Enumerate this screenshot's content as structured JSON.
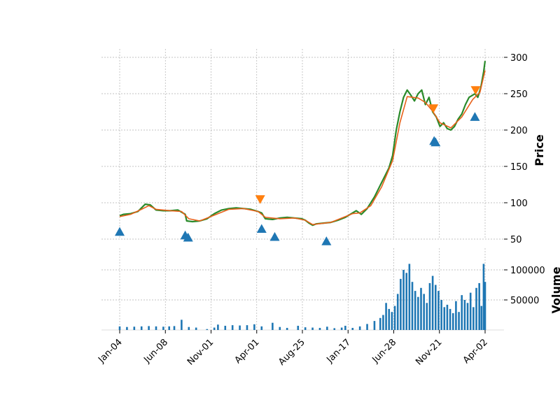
{
  "chart_data": {
    "type": "line",
    "subtype": "candlestick-with-volume",
    "x_tick_labels": [
      "Jan-04",
      "Jun-08",
      "Nov-01",
      "Apr-01",
      "Aug-25",
      "Jan-17",
      "Jun-28",
      "Nov-21",
      "Apr-02"
    ],
    "price_panel": {
      "ylabel": "Price",
      "ylim": [
        40,
        310
      ],
      "yticks": [
        50,
        100,
        150,
        200,
        250,
        300
      ],
      "close": [
        [
          0,
          82
        ],
        [
          5,
          84
        ],
        [
          15,
          85
        ],
        [
          25,
          88
        ],
        [
          30,
          93
        ],
        [
          35,
          98
        ],
        [
          42,
          97
        ],
        [
          50,
          90
        ],
        [
          60,
          89
        ],
        [
          70,
          89
        ],
        [
          80,
          90
        ],
        [
          90,
          84
        ],
        [
          92,
          75
        ],
        [
          100,
          74
        ],
        [
          110,
          75
        ],
        [
          120,
          78
        ],
        [
          130,
          85
        ],
        [
          140,
          90
        ],
        [
          150,
          92
        ],
        [
          160,
          93
        ],
        [
          170,
          92
        ],
        [
          180,
          91
        ],
        [
          190,
          88
        ],
        [
          195,
          86
        ],
        [
          200,
          78
        ],
        [
          210,
          77
        ],
        [
          220,
          79
        ],
        [
          230,
          80
        ],
        [
          240,
          79
        ],
        [
          250,
          78
        ],
        [
          255,
          76
        ],
        [
          260,
          72
        ],
        [
          265,
          69
        ],
        [
          270,
          71
        ],
        [
          280,
          72
        ],
        [
          290,
          73
        ],
        [
          300,
          76
        ],
        [
          310,
          80
        ],
        [
          320,
          86
        ],
        [
          325,
          89
        ],
        [
          332,
          84
        ],
        [
          340,
          92
        ],
        [
          350,
          108
        ],
        [
          360,
          128
        ],
        [
          370,
          148
        ],
        [
          375,
          165
        ],
        [
          380,
          200
        ],
        [
          385,
          225
        ],
        [
          390,
          245
        ],
        [
          395,
          255
        ],
        [
          400,
          248
        ],
        [
          405,
          240
        ],
        [
          410,
          250
        ],
        [
          415,
          255
        ],
        [
          420,
          235
        ],
        [
          425,
          245
        ],
        [
          430,
          225
        ],
        [
          435,
          218
        ],
        [
          440,
          205
        ],
        [
          445,
          210
        ],
        [
          450,
          202
        ],
        [
          455,
          200
        ],
        [
          460,
          205
        ],
        [
          465,
          215
        ],
        [
          470,
          222
        ],
        [
          475,
          235
        ],
        [
          480,
          245
        ],
        [
          485,
          248
        ],
        [
          488,
          250
        ],
        [
          492,
          245
        ],
        [
          496,
          258
        ],
        [
          500,
          280
        ],
        [
          502,
          295
        ]
      ],
      "ema": [
        [
          0,
          81
        ],
        [
          15,
          84
        ],
        [
          30,
          91
        ],
        [
          40,
          96
        ],
        [
          50,
          91
        ],
        [
          70,
          89
        ],
        [
          85,
          88
        ],
        [
          95,
          78
        ],
        [
          110,
          75
        ],
        [
          130,
          83
        ],
        [
          150,
          91
        ],
        [
          170,
          92
        ],
        [
          190,
          88
        ],
        [
          200,
          80
        ],
        [
          220,
          78
        ],
        [
          240,
          79
        ],
        [
          255,
          76
        ],
        [
          265,
          70
        ],
        [
          290,
          73
        ],
        [
          320,
          85
        ],
        [
          330,
          86
        ],
        [
          345,
          96
        ],
        [
          360,
          122
        ],
        [
          375,
          158
        ],
        [
          385,
          210
        ],
        [
          395,
          246
        ],
        [
          410,
          244
        ],
        [
          420,
          238
        ],
        [
          430,
          226
        ],
        [
          440,
          210
        ],
        [
          455,
          203
        ],
        [
          470,
          218
        ],
        [
          485,
          242
        ],
        [
          495,
          252
        ],
        [
          502,
          282
        ]
      ],
      "buy_markers": [
        [
          0,
          60
        ],
        [
          90,
          55
        ],
        [
          94,
          52
        ],
        [
          195,
          64
        ],
        [
          213,
          53
        ],
        [
          284,
          47
        ],
        [
          432,
          185
        ],
        [
          434,
          183
        ],
        [
          488,
          218
        ]
      ],
      "sell_markers": [
        [
          193,
          105
        ],
        [
          431,
          230
        ],
        [
          489,
          255
        ]
      ],
      "colors": {
        "close": "#2a8a2a",
        "ema": "#e8611a",
        "buy": "#1f77b4",
        "sell": "#ff7f0e"
      }
    },
    "volume_panel": {
      "ylabel": "Volume",
      "ylim": [
        0,
        125000
      ],
      "yticks": [
        50000,
        100000
      ],
      "bars": [
        [
          0,
          6000
        ],
        [
          10,
          5000
        ],
        [
          20,
          5500
        ],
        [
          30,
          6000
        ],
        [
          40,
          6500
        ],
        [
          50,
          6000
        ],
        [
          60,
          5500
        ],
        [
          68,
          6000
        ],
        [
          75,
          6500
        ],
        [
          85,
          17000
        ],
        [
          95,
          5000
        ],
        [
          105,
          4000
        ],
        [
          120,
          1500
        ],
        [
          130,
          4000
        ],
        [
          135,
          9000
        ],
        [
          145,
          7000
        ],
        [
          155,
          8000
        ],
        [
          165,
          7500
        ],
        [
          175,
          8000
        ],
        [
          185,
          9500
        ],
        [
          195,
          6000
        ],
        [
          210,
          12000
        ],
        [
          220,
          5000
        ],
        [
          230,
          3500
        ],
        [
          245,
          7000
        ],
        [
          255,
          4500
        ],
        [
          265,
          4000
        ],
        [
          275,
          3500
        ],
        [
          285,
          5500
        ],
        [
          295,
          3000
        ],
        [
          305,
          4000
        ],
        [
          310,
          7000
        ],
        [
          320,
          3500
        ],
        [
          330,
          6000
        ],
        [
          340,
          10000
        ],
        [
          350,
          15000
        ],
        [
          358,
          20000
        ],
        [
          362,
          25000
        ],
        [
          366,
          45000
        ],
        [
          370,
          35000
        ],
        [
          374,
          30000
        ],
        [
          378,
          40000
        ],
        [
          382,
          60000
        ],
        [
          386,
          85000
        ],
        [
          390,
          100000
        ],
        [
          394,
          95000
        ],
        [
          398,
          110000
        ],
        [
          402,
          80000
        ],
        [
          406,
          65000
        ],
        [
          410,
          55000
        ],
        [
          414,
          70000
        ],
        [
          418,
          60000
        ],
        [
          422,
          45000
        ],
        [
          426,
          78000
        ],
        [
          430,
          90000
        ],
        [
          434,
          75000
        ],
        [
          438,
          65000
        ],
        [
          442,
          50000
        ],
        [
          446,
          38000
        ],
        [
          450,
          42000
        ],
        [
          454,
          35000
        ],
        [
          458,
          28000
        ],
        [
          462,
          48000
        ],
        [
          466,
          30000
        ],
        [
          470,
          58000
        ],
        [
          474,
          50000
        ],
        [
          478,
          45000
        ],
        [
          482,
          62000
        ],
        [
          486,
          38000
        ],
        [
          490,
          70000
        ],
        [
          494,
          78000
        ],
        [
          497,
          40000
        ],
        [
          500,
          110000
        ],
        [
          502,
          80000
        ]
      ],
      "color": "#1f77b4"
    }
  }
}
